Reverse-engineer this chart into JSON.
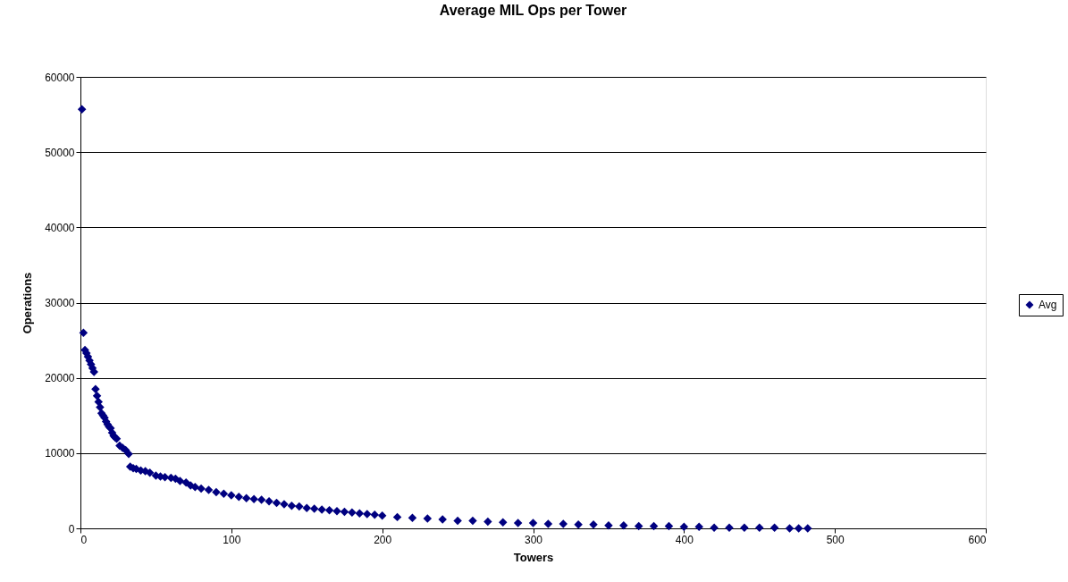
{
  "chart_data": {
    "type": "scatter",
    "title": "Average MIL Ops per Tower",
    "xlabel": "Towers",
    "ylabel": "Operations",
    "xlim": [
      0,
      600
    ],
    "xticks": [
      0,
      100,
      200,
      300,
      400,
      500,
      600
    ],
    "ylim": [
      0,
      60000
    ],
    "yticks": [
      0,
      10000,
      20000,
      30000,
      40000,
      50000,
      60000
    ],
    "grid": "y",
    "legend": "right",
    "marker": "diamond",
    "series": [
      {
        "name": "Avg",
        "color": "#000080",
        "x": [
          1,
          2,
          3,
          4,
          5,
          6,
          7,
          8,
          9,
          10,
          11,
          12,
          13,
          14,
          15,
          16,
          17,
          18,
          19,
          20,
          21,
          22,
          23,
          24,
          26,
          28,
          30,
          32,
          33,
          35,
          37,
          40,
          43,
          46,
          50,
          53,
          56,
          60,
          63,
          66,
          70,
          73,
          76,
          80,
          85,
          90,
          95,
          100,
          105,
          110,
          115,
          120,
          125,
          130,
          135,
          140,
          145,
          150,
          155,
          160,
          165,
          170,
          175,
          180,
          185,
          190,
          195,
          200,
          210,
          220,
          230,
          240,
          250,
          260,
          270,
          280,
          290,
          300,
          310,
          320,
          330,
          340,
          350,
          360,
          370,
          380,
          390,
          400,
          410,
          420,
          430,
          440,
          450,
          460,
          470,
          476,
          482
        ],
        "values": [
          55700,
          26000,
          23700,
          23300,
          22800,
          22300,
          21800,
          21300,
          20800,
          18500,
          17600,
          16800,
          16100,
          15300,
          15000,
          14700,
          14200,
          13800,
          13500,
          13300,
          12700,
          12300,
          12100,
          11900,
          11000,
          10700,
          10400,
          9900,
          8200,
          8000,
          7900,
          7700,
          7600,
          7400,
          7000,
          6900,
          6800,
          6700,
          6600,
          6300,
          6100,
          5700,
          5500,
          5300,
          5100,
          4800,
          4600,
          4400,
          4200,
          4000,
          3900,
          3800,
          3600,
          3400,
          3200,
          3000,
          2900,
          2700,
          2600,
          2500,
          2400,
          2300,
          2200,
          2100,
          2000,
          1900,
          1800,
          1700,
          1500,
          1400,
          1300,
          1200,
          1000,
          1000,
          900,
          800,
          700,
          700,
          600,
          600,
          500,
          500,
          400,
          400,
          300,
          300,
          300,
          200,
          200,
          100,
          100,
          100,
          100,
          100,
          0,
          0,
          0
        ]
      }
    ]
  }
}
